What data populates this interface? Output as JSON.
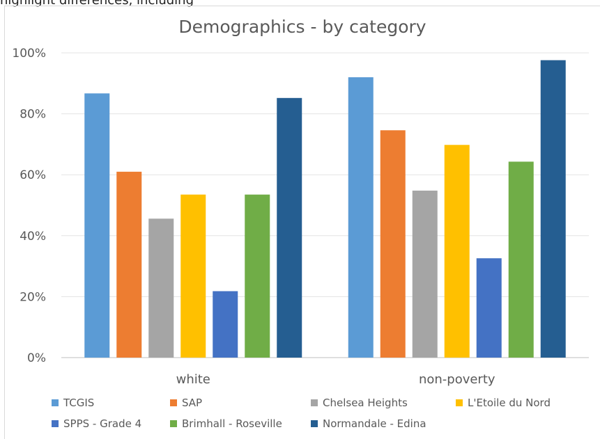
{
  "page": {
    "top_fragment": "highlight differences, including"
  },
  "chart_data": {
    "type": "bar",
    "title": "Demographics - by category",
    "categories": [
      "white",
      "non-poverty"
    ],
    "ylim": [
      0,
      100
    ],
    "yticks": [
      "0%",
      "20%",
      "40%",
      "60%",
      "80%",
      "100%"
    ],
    "grid": true,
    "legend_position": "bottom",
    "series": [
      {
        "name": "TCGIS",
        "color": "#5B9BD5",
        "values": [
          86.7,
          92.0
        ]
      },
      {
        "name": "SAP",
        "color": "#ED7D31",
        "values": [
          61.0,
          74.6
        ]
      },
      {
        "name": "Chelsea Heights",
        "color": "#A5A5A5",
        "values": [
          45.6,
          54.8
        ]
      },
      {
        "name": "L'Etoile du Nord",
        "color": "#FFC000",
        "values": [
          53.5,
          69.8
        ]
      },
      {
        "name": "SPPS - Grade 4",
        "color": "#4472C4",
        "values": [
          21.8,
          32.6
        ]
      },
      {
        "name": "Brimhall - Roseville",
        "color": "#70AD47",
        "values": [
          53.5,
          64.3
        ]
      },
      {
        "name": "Normandale - Edina",
        "color": "#255E91",
        "values": [
          85.2,
          97.6
        ]
      }
    ]
  }
}
